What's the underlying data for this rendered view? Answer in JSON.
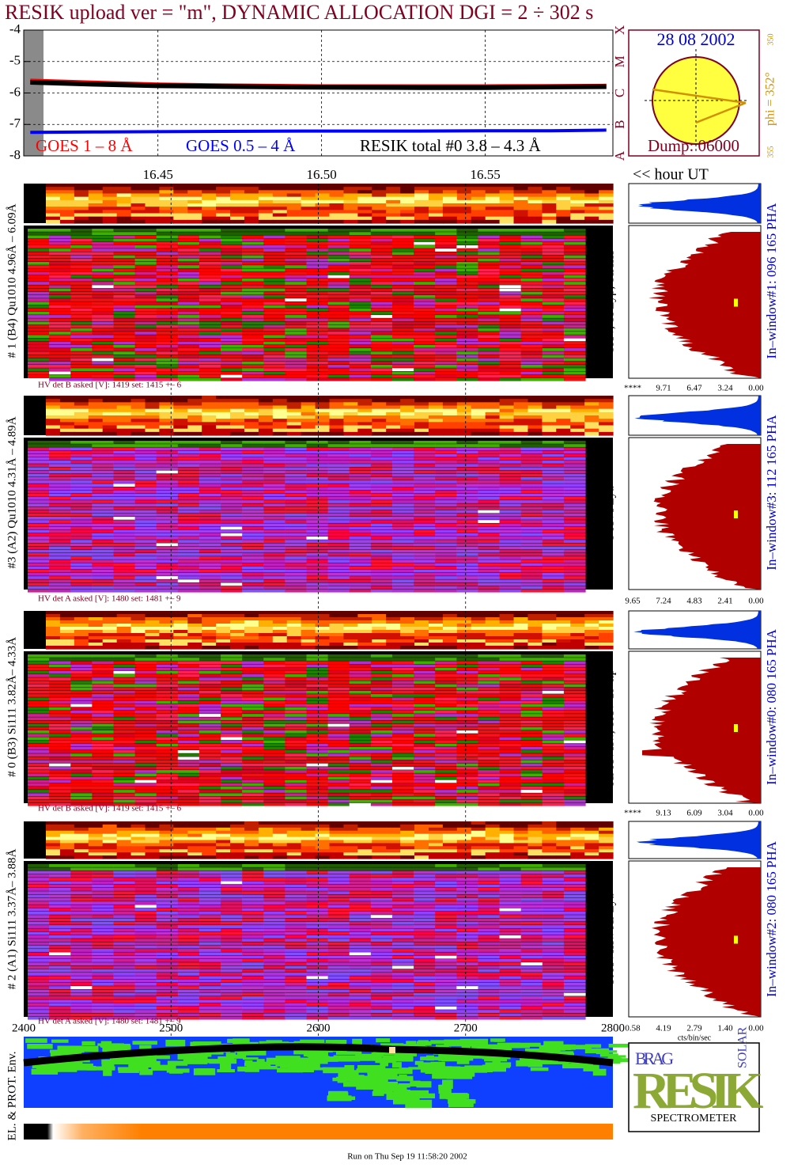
{
  "chart_data": {
    "type": "line",
    "xlim": [
      16.409,
      16.589
    ],
    "xticks": [
      16.45,
      {
        "value": 16.5,
        "label": "16.50"
      },
      16.55
    ],
    "ylim": [
      -8,
      -4
    ],
    "yticks": [
      -4,
      -5,
      -6,
      -7,
      -8
    ],
    "grid": true,
    "x_label": "<< hour UT",
    "x": [
      16.411,
      16.43,
      16.45,
      16.47,
      16.5,
      16.53,
      16.55,
      16.57,
      16.587
    ],
    "series": [
      {
        "name": "GOES 1 – 8 Å",
        "color": "#ff0000",
        "values": [
          -5.62,
          -5.68,
          -5.74,
          -5.77,
          -5.8,
          -5.8,
          -5.8,
          -5.79,
          -5.78
        ]
      },
      {
        "name": "GOES 0.5 – 4 Å",
        "color": "#0000ff",
        "values": [
          -7.25,
          -7.24,
          -7.23,
          -7.22,
          -7.21,
          -7.21,
          -7.2,
          -7.2,
          -7.18
        ]
      },
      {
        "name": "RESIK total #0  3.8 – 4.3 Å",
        "color": "#000000",
        "values": [
          -5.66,
          -5.72,
          -5.77,
          -5.79,
          -5.82,
          -5.83,
          -5.83,
          -5.81,
          -5.8
        ]
      }
    ]
  },
  "header": {
    "title": "RESIK upload ver = \"m\", DYNAMIC ALLOCATION  DGI =   2 ÷ 302 s"
  },
  "inset": {
    "date": "28 08 2002",
    "phi": "phi = 352°",
    "phi_ticks": [
      "350",
      "355"
    ],
    "dump": "Dump: 06000",
    "classes": [
      "X",
      "M",
      "C",
      "B",
      "A"
    ]
  },
  "panels": [
    {
      "left_label": "# 1 (B4) Qu1010 4.96Å – 6.09Å",
      "right_label": "SXV, Si Lyβ, SiXIII",
      "hv": "HV det B asked [V]:  1419 set:  1415 +–   6",
      "hist_ticks": [
        "****",
        "9.71",
        "6.47",
        "3.24",
        "0.00"
      ],
      "window": "In–window#1:  096 165 PHA"
    },
    {
      "left_label": "#3 (A2) Qu1010  4.31Å – 4.89Å",
      "right_label": "S XVI Lya",
      "hv": "HV det A asked [V]:  1480 set:  1481 +–   9",
      "hist_ticks": [
        "9.65",
        "7.24",
        "4.83",
        "2.41",
        "0.00"
      ],
      "window": "In–window#3:  112 165 PHA"
    },
    {
      "left_label": "# 0 (B3) Si111  3.82Å– 4.33Å",
      "right_label": "Ar XVIIw,  SXV 1s–np",
      "hv": "HV det B asked [V]:  1419 set:  1415 +–   6",
      "hist_ticks": [
        "****",
        "9.13",
        "6.09",
        "3.04",
        "0.00"
      ],
      "window": "In–window#0:  080 165 PHA"
    },
    {
      "left_label": "# 2 (A1) Si111  3.37Å– 3.88Å",
      "right_label": "K XVIIIw  Ar Lya",
      "hv": "HV det A asked [V]:  1480 set:  1481 +–   9",
      "hist_ticks": [
        "0.58",
        "4.19",
        "2.79",
        "1.40",
        "0.00"
      ],
      "window": "In–window#2:  080 165 PHA"
    }
  ],
  "bottom_axis": {
    "xlim": [
      2400,
      2800
    ],
    "xticks": [
      2400,
      2500,
      2600,
      2700,
      2800
    ]
  },
  "hist_unit": "cts/bin/sec",
  "env_label": "EL. & PROT. Env.",
  "logo": {
    "brag": "BRAG",
    "resik": "RESIK",
    "solar": "SOLAR",
    "name": "SPECTROMETER"
  },
  "footer": "Run on Thu Sep 19 11:58:20 2002"
}
